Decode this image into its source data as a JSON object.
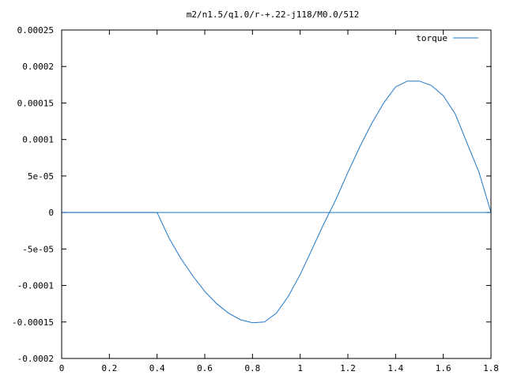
{
  "chart_data": {
    "type": "line",
    "title": "m2/n1.5/q1.0/r-+.22-j118/M0.0/512",
    "xlabel": "",
    "ylabel": "",
    "xlim": [
      0,
      1.8
    ],
    "ylim": [
      -0.0002,
      0.00025
    ],
    "x_ticks": [
      "0",
      "0.2",
      "0.4",
      "0.6",
      "0.8",
      "1",
      "1.2",
      "1.4",
      "1.6",
      "1.8"
    ],
    "y_ticks": [
      "-0.0002",
      "-0.00015",
      "-0.0001",
      "-5e-05",
      "0",
      "5e-05",
      "0.0001",
      "0.00015",
      "0.0002",
      "0.00025"
    ],
    "grid": false,
    "legend_position": "top-right",
    "series": [
      {
        "name": "torque",
        "color": "#1f78c8",
        "x": [
          0.0,
          0.4,
          0.45,
          0.5,
          0.55,
          0.6,
          0.65,
          0.7,
          0.75,
          0.8,
          0.85,
          0.9,
          0.95,
          1.0,
          1.05,
          1.1,
          1.15,
          1.2,
          1.25,
          1.3,
          1.35,
          1.4,
          1.45,
          1.5,
          1.55,
          1.6,
          1.65,
          1.7,
          1.75,
          1.8
        ],
        "y": [
          0.0,
          0.0,
          -3.5e-05,
          -6.3e-05,
          -8.7e-05,
          -0.000108,
          -0.000125,
          -0.000138,
          -0.000147,
          -0.000151,
          -0.00015,
          -0.000138,
          -0.000115,
          -8.5e-05,
          -5e-05,
          -1.5e-05,
          1.8e-05,
          5.5e-05,
          9e-05,
          0.000122,
          0.00015,
          0.000172,
          0.00018,
          0.00018,
          0.000174,
          0.00016,
          0.000135,
          9.5e-05,
          5.5e-05,
          0.0
        ]
      }
    ]
  }
}
